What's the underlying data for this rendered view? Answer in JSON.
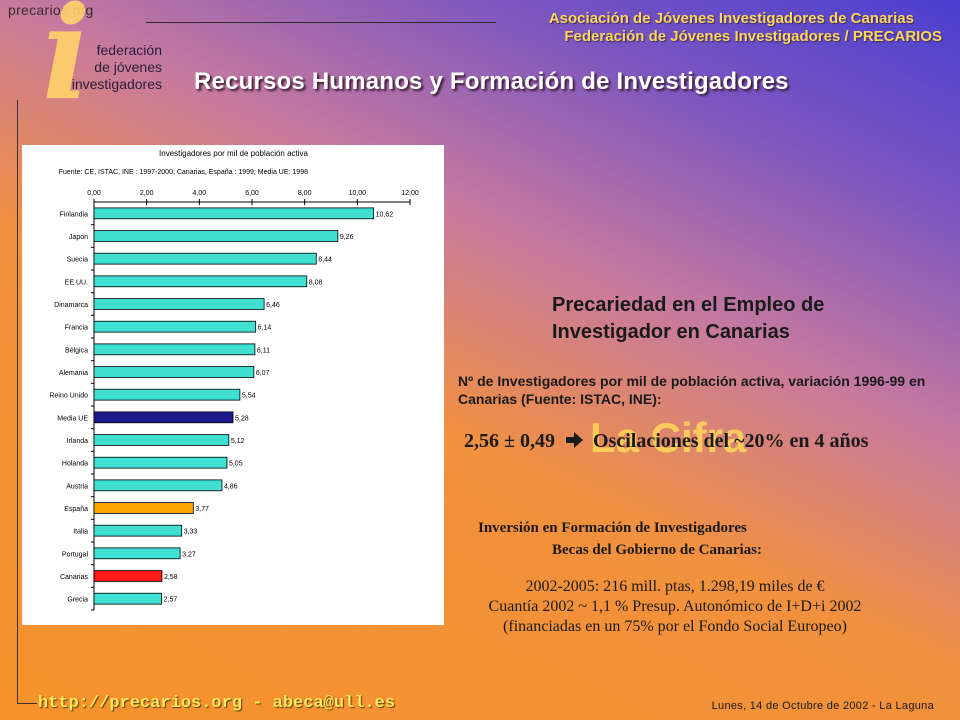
{
  "logo": {
    "site": "precarios  org",
    "glyph": "i",
    "line1": "federación",
    "line2": "de jóvenes",
    "line3": "investigadores"
  },
  "header": {
    "org_line1": "Asociación de Jóvenes Investigadores de Canarias",
    "org_line2": "Federación de Jóvenes Investigadores / PRECARIOS",
    "title": "Recursos Humanos y Formación de Investigadores"
  },
  "chart_data": {
    "type": "bar",
    "orientation": "horizontal",
    "title": "Investigadores por mil de población activa",
    "subtitle": "Fuente: CE, ISTAC, INE : 1997-2000; Canarias, España : 1999; Media UE: 1998",
    "xlim": [
      0,
      12
    ],
    "xticks": [
      "0,00",
      "2,00",
      "4,00",
      "6,00",
      "8,00",
      "10,00",
      "12,00"
    ],
    "categories": [
      "Finlandia",
      "Japon",
      "Suecia",
      "EE.UU.",
      "Dinamarca",
      "Francia",
      "Bélgica",
      "Alemania",
      "Reino Unido",
      "Media UE",
      "Irlanda",
      "Holanda",
      "Austria",
      "España",
      "Italia",
      "Portugal",
      "Canarias",
      "Grecia"
    ],
    "values": [
      10.62,
      9.26,
      8.44,
      8.08,
      6.46,
      6.14,
      6.11,
      6.07,
      5.54,
      5.28,
      5.12,
      5.05,
      4.86,
      3.77,
      3.33,
      3.27,
      2.58,
      2.57
    ],
    "value_labels": [
      "10,62",
      "9,26",
      "8,44",
      "8,08",
      "6,46",
      "6,14",
      "6,11",
      "6,07",
      "5,54",
      "5,28",
      "5,12",
      "5,05",
      "4,86",
      "3,77",
      "3,33",
      "3,27",
      "2,58",
      "2,57"
    ],
    "colors": {
      "default": "#40e0d0",
      "Media UE": "#1a1a8c",
      "España": "#ffa500",
      "Canarias": "#ff1a1a"
    },
    "grid": false,
    "legend": "none"
  },
  "right": {
    "prec_title_1": "Precariedad en el Empleo de",
    "prec_title_2": "Investigador en Canarias",
    "prec_sub": "Nº de Investigadores por mil de población activa, variación 1996-99 en Canarias (Fuente: ISTAC, INE):",
    "cifra_bg": "La Cifra",
    "cifra_value": "2,56 ± 0,49",
    "cifra_text": "Oscilaciones del ~20% en 4 años",
    "inv_title": "Inversión en Formación de Investigadores",
    "inv_sub": "Becas del Gobierno de Canarias:",
    "inv_line1": "2002-2005: 216 mill. ptas, 1.298,19 miles de €",
    "inv_line2": "Cuantía 2002 ~ 1,1 % Presup. Autonómico de I+D+i 2002",
    "inv_line3": "(financiadas en un 75% por el Fondo Social Europeo)"
  },
  "footer": {
    "link": "http://precarios.org - abeca@ull.es",
    "date": "Lunes, 14 de Octubre de 2002 - La Laguna"
  },
  "icons": {
    "arrow": "arrow-right-icon"
  }
}
